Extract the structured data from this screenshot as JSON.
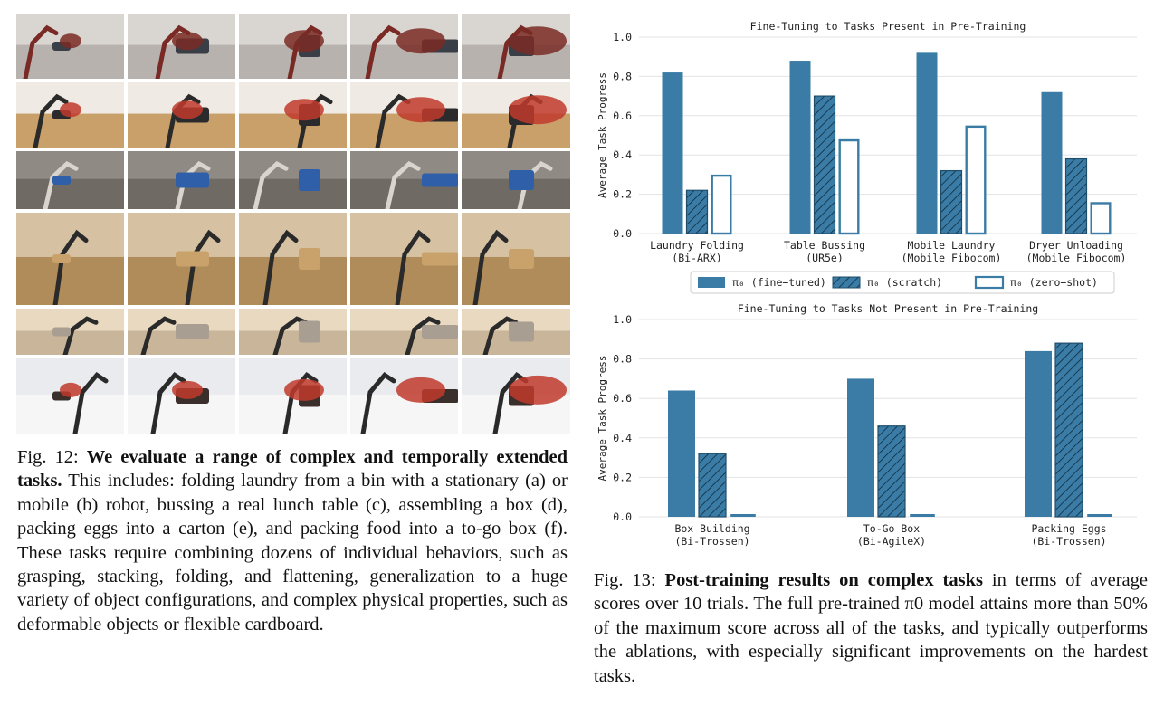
{
  "photo_grid": {
    "rows": [
      {
        "task": "folding laundry, stationary robot",
        "palette": [
          "#d9d6d2",
          "#b7b2ad",
          "#3a3f47",
          "#7a2a25"
        ]
      },
      {
        "task": "folding laundry, mobile robot",
        "palette": [
          "#efeae4",
          "#c9a06a",
          "#2b2b2e",
          "#c0392b"
        ]
      },
      {
        "task": "bussing a lunch table",
        "palette": [
          "#8f8a83",
          "#6f6a63",
          "#2f5fa8",
          "#d9d4cc"
        ]
      },
      {
        "task": "assembling a box",
        "palette": [
          "#d6c2a3",
          "#b08c5a",
          "#c9a26b",
          "#2a2a2a"
        ]
      },
      {
        "task": "packing eggs",
        "palette": [
          "#e8d9c0",
          "#c8b59a",
          "#a89f92",
          "#2a2a2a"
        ]
      },
      {
        "task": "packing food into a to-go box",
        "palette": [
          "#e9ebef",
          "#f6f6f6",
          "#3a2f2a",
          "#c0392b"
        ]
      }
    ],
    "columns": 5
  },
  "fig12": {
    "label": "Fig. 12:",
    "bold": "We evaluate a range of complex and temporally extended tasks.",
    "text": "This includes: folding laundry from a bin with a stationary (a) or mobile (b) robot, bussing a real lunch table (c), assembling a box (d), packing eggs into a carton (e), and packing food into a to-go box (f). These tasks require combining dozens of individual behaviors, such as grasping, stacking, folding, and flattening, generalization to a huge variety of object configurations, and complex physical properties, such as deformable objects or flexible cardboard."
  },
  "fig13": {
    "label": "Fig. 13:",
    "bold": "Post-training results on complex tasks",
    "text": "in terms of average scores over 10 trials. The full pre-trained π0 model attains more than 50% of the maximum score across all of the tasks, and typically outperforms the ablations, with especially significant improvements on the hardest tasks."
  },
  "colors": {
    "bar": "#3a7ca5",
    "bar_dark": "#1f4e6b",
    "grid": "#e3e3e3",
    "text": "#222222"
  },
  "legend": {
    "fine_tuned": "π₀ (fine−tuned)",
    "scratch": "π₀ (scratch)",
    "zero_shot": "π₀ (zero−shot)"
  },
  "chart_data": [
    {
      "type": "bar",
      "title": "Fine-Tuning to Tasks Present in Pre-Training",
      "ylabel": "Average Task Progress",
      "ylim": [
        0,
        1.0
      ],
      "yticks": [
        "0.0",
        "0.2",
        "0.4",
        "0.6",
        "0.8",
        "1.0"
      ],
      "grid": true,
      "categories": [
        [
          "Laundry Folding",
          "(Bi-ARX)"
        ],
        [
          "Table Bussing",
          "(UR5e)"
        ],
        [
          "Mobile Laundry",
          "(Mobile Fibocom)"
        ],
        [
          "Dryer Unloading",
          "(Mobile Fibocom)"
        ]
      ],
      "series": [
        {
          "name": "π₀ (fine−tuned)",
          "style": "solid",
          "values": [
            0.82,
            0.88,
            0.92,
            0.72
          ]
        },
        {
          "name": "π₀ (scratch)",
          "style": "hatched",
          "values": [
            0.22,
            0.7,
            0.32,
            0.38
          ]
        },
        {
          "name": "π₀ (zero−shot)",
          "style": "outline",
          "values": [
            0.3,
            0.48,
            0.55,
            0.16
          ]
        }
      ]
    },
    {
      "type": "bar",
      "title": "Fine-Tuning to Tasks Not Present in Pre-Training",
      "ylabel": "Average Task Progress",
      "ylim": [
        0,
        1.0
      ],
      "yticks": [
        "0.0",
        "0.2",
        "0.4",
        "0.6",
        "0.8",
        "1.0"
      ],
      "grid": true,
      "categories": [
        [
          "Box Building",
          "(Bi-Trossen)"
        ],
        [
          "To-Go Box",
          "(Bi-AgileX)"
        ],
        [
          "Packing Eggs",
          "(Bi-Trossen)"
        ]
      ],
      "series": [
        {
          "name": "π₀ (fine−tuned)",
          "style": "solid",
          "values": [
            0.64,
            0.7,
            0.84
          ]
        },
        {
          "name": "π₀ (scratch)",
          "style": "hatched",
          "values": [
            0.32,
            0.46,
            0.88
          ]
        },
        {
          "name": "π₀ (zero−shot)",
          "style": "outline",
          "values": [
            0.01,
            0.01,
            0.01
          ]
        }
      ]
    }
  ]
}
